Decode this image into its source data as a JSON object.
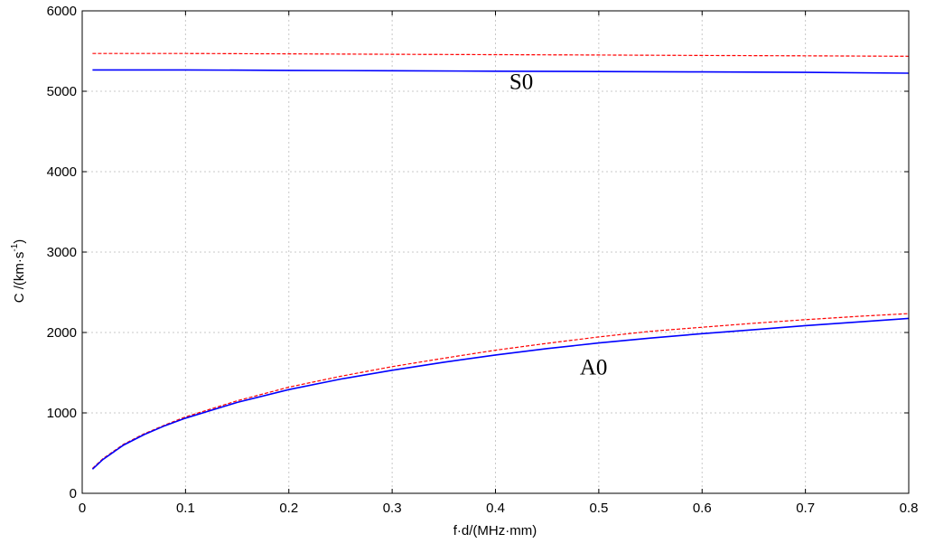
{
  "chart_data": {
    "type": "line",
    "xlabel": "f·d/(MHz·mm)",
    "ylabel_main": "C /(km·s",
    "ylabel_sup": "-1",
    "ylabel_close": ")",
    "xlim": [
      0,
      0.8
    ],
    "ylim": [
      0,
      6000
    ],
    "xticks": [
      0,
      0.1,
      0.2,
      0.3,
      0.4,
      0.5,
      0.6,
      0.7,
      0.8
    ],
    "xtick_labels": [
      "0",
      "0.1",
      "0.2",
      "0.3",
      "0.4",
      "0.5",
      "0.6",
      "0.7",
      "0.8"
    ],
    "yticks": [
      0,
      1000,
      2000,
      3000,
      4000,
      5000,
      6000
    ],
    "ytick_labels": [
      "0",
      "1000",
      "2000",
      "3000",
      "4000",
      "5000",
      "6000"
    ],
    "grid": true,
    "annotations": [
      {
        "text": "S0",
        "x": 0.425,
        "y": 5030
      },
      {
        "text": "A0",
        "x": 0.495,
        "y": 1480
      }
    ],
    "series": [
      {
        "color": "#ff0000",
        "style": "dashed",
        "x": [
          0.01,
          0.1,
          0.2,
          0.3,
          0.4,
          0.5,
          0.6,
          0.7,
          0.8
        ],
        "y": [
          5470,
          5470,
          5465,
          5460,
          5455,
          5450,
          5445,
          5440,
          5435
        ]
      },
      {
        "color": "#0000ff",
        "style": "solid",
        "x": [
          0.01,
          0.1,
          0.2,
          0.3,
          0.4,
          0.5,
          0.6,
          0.7,
          0.8
        ],
        "y": [
          5265,
          5265,
          5260,
          5255,
          5250,
          5245,
          5240,
          5235,
          5225
        ]
      },
      {
        "color": "#ff0000",
        "style": "dashed",
        "x": [
          0.01,
          0.02,
          0.04,
          0.06,
          0.08,
          0.1,
          0.15,
          0.2,
          0.25,
          0.3,
          0.35,
          0.4,
          0.45,
          0.5,
          0.55,
          0.6,
          0.65,
          0.7,
          0.75,
          0.8
        ],
        "y": [
          310,
          430,
          610,
          740,
          850,
          950,
          1150,
          1320,
          1455,
          1575,
          1680,
          1780,
          1865,
          1945,
          2015,
          2065,
          2115,
          2160,
          2200,
          2235
        ]
      },
      {
        "color": "#0000ff",
        "style": "solid",
        "x": [
          0.01,
          0.02,
          0.04,
          0.06,
          0.08,
          0.1,
          0.15,
          0.2,
          0.25,
          0.3,
          0.35,
          0.4,
          0.45,
          0.5,
          0.55,
          0.6,
          0.65,
          0.7,
          0.75,
          0.8
        ],
        "y": [
          300,
          420,
          600,
          730,
          840,
          935,
          1130,
          1290,
          1420,
          1530,
          1630,
          1720,
          1800,
          1870,
          1930,
          1985,
          2035,
          2085,
          2130,
          2175
        ]
      }
    ]
  }
}
